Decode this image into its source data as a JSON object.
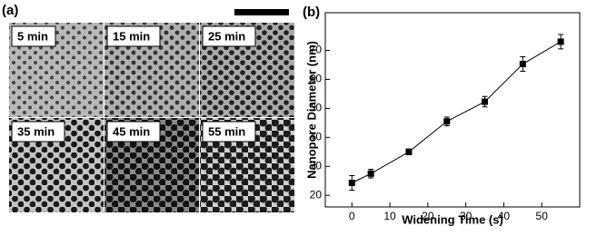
{
  "panel_a": {
    "label": "(a)",
    "images": [
      {
        "label": "5 min"
      },
      {
        "label": "15 min"
      },
      {
        "label": "25 min"
      },
      {
        "label": "35 min"
      },
      {
        "label": "45 min"
      },
      {
        "label": "55 min"
      }
    ]
  },
  "chart_data": {
    "type": "scatter",
    "panel_label": "(b)",
    "x_label": "Widening Time (s)",
    "y_label": "Nanopore Diameter (nm)",
    "x": [
      0,
      5,
      15,
      25,
      35,
      45,
      55
    ],
    "values": [
      24.3,
      27.5,
      35,
      45.5,
      52.3,
      65.3,
      73
    ],
    "errors": [
      2.5,
      1.5,
      1,
      1.5,
      1.8,
      2.5,
      2.5
    ],
    "color": "#000000",
    "xlim": [
      -7,
      60
    ],
    "ylim": [
      16,
      83
    ],
    "xticks": [
      0,
      10,
      20,
      30,
      40,
      50
    ],
    "yticks": [
      20,
      30,
      40,
      50,
      60,
      70
    ]
  }
}
